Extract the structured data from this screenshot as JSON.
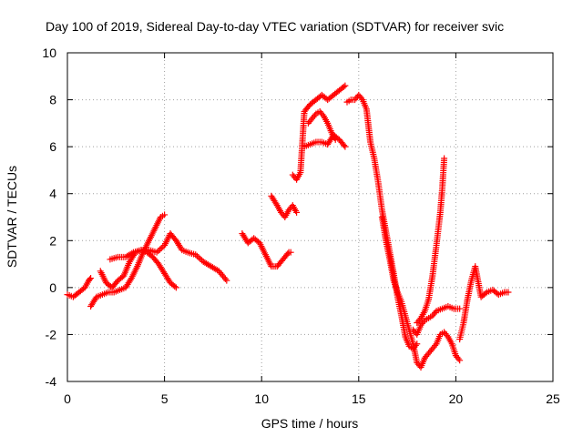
{
  "chart_data": {
    "type": "scatter",
    "title": "Day 100 of 2019, Sidereal Day-to-day VTEC variation (SDTVAR) for receiver svic",
    "xlabel": "GPS time / hours",
    "ylabel": "SDTVAR / TECUs",
    "xlim": [
      0,
      25
    ],
    "ylim": [
      -4,
      10
    ],
    "x_ticks": [
      "0",
      "5",
      "10",
      "15",
      "20",
      "25"
    ],
    "y_ticks": [
      "-4",
      "-2",
      "0",
      "2",
      "4",
      "6",
      "8",
      "10"
    ],
    "grid": true,
    "marker": "plus",
    "color": "#ff0000",
    "series": [
      {
        "segments": [
          {
            "x": [
              0.0,
              0.3,
              0.6,
              0.9,
              1.1,
              1.2
            ],
            "y": [
              -0.3,
              -0.4,
              -0.2,
              0.0,
              0.3,
              0.4
            ]
          },
          {
            "x": [
              1.2,
              1.5,
              1.8,
              2.1,
              2.4,
              2.7,
              3.0,
              3.3,
              3.6,
              3.9,
              4.2,
              4.5,
              4.8,
              5.0
            ],
            "y": [
              -0.8,
              -0.4,
              -0.3,
              -0.2,
              -0.2,
              -0.1,
              0.0,
              0.4,
              0.9,
              1.5,
              2.0,
              2.5,
              3.0,
              3.1
            ]
          },
          {
            "x": [
              1.7,
              2.0,
              2.3,
              2.6,
              2.9,
              3.2,
              3.5,
              3.8,
              4.1,
              4.4,
              4.7,
              5.0,
              5.3,
              5.6
            ],
            "y": [
              0.7,
              0.2,
              0.0,
              0.3,
              0.5,
              1.1,
              1.5,
              1.6,
              1.5,
              1.3,
              1.0,
              0.6,
              0.2,
              0.0
            ]
          },
          {
            "x": [
              2.2,
              2.6,
              3.0,
              3.4,
              3.8,
              4.2,
              4.6,
              5.0,
              5.3,
              5.6,
              5.9,
              6.2,
              6.6,
              7.0,
              7.4,
              7.8,
              8.2
            ],
            "y": [
              1.2,
              1.3,
              1.3,
              1.5,
              1.6,
              1.6,
              1.5,
              1.8,
              2.3,
              2.0,
              1.6,
              1.5,
              1.4,
              1.1,
              0.9,
              0.7,
              0.3
            ]
          },
          {
            "x": [
              9.0,
              9.3,
              9.6,
              9.9,
              10.2,
              10.5,
              10.8,
              11.1,
              11.4,
              11.5
            ],
            "y": [
              2.3,
              1.9,
              2.1,
              1.9,
              1.4,
              0.9,
              0.9,
              1.2,
              1.5,
              1.5
            ]
          },
          {
            "x": [
              10.5,
              10.8,
              11.0,
              11.2,
              11.4,
              11.6,
              11.8
            ],
            "y": [
              3.9,
              3.5,
              3.2,
              3.0,
              3.3,
              3.5,
              3.2
            ]
          },
          {
            "x": [
              11.6,
              11.8,
              12.0,
              12.2,
              12.5,
              12.8,
              13.1,
              13.4,
              13.7,
              14.0,
              14.3
            ],
            "y": [
              4.8,
              4.6,
              4.9,
              7.5,
              7.8,
              8.0,
              8.2,
              8.0,
              8.2,
              8.4,
              8.6
            ]
          },
          {
            "x": [
              12.2,
              12.5,
              12.8,
              13.1,
              13.4,
              13.7,
              14.0,
              14.3
            ],
            "y": [
              6.0,
              6.1,
              6.2,
              6.2,
              6.1,
              6.5,
              6.3,
              6.0
            ]
          },
          {
            "x": [
              12.4,
              12.6,
              12.8,
              13.0,
              13.2,
              13.4,
              13.6,
              13.8
            ],
            "y": [
              7.0,
              7.2,
              7.4,
              7.5,
              7.3,
              7.0,
              6.6,
              6.3
            ]
          },
          {
            "x": [
              14.4,
              14.6,
              14.8,
              15.0,
              15.2,
              15.4,
              15.6,
              15.8,
              16.0,
              16.2,
              16.4,
              16.6,
              16.8,
              17.0,
              17.2,
              17.4,
              17.6,
              17.8,
              18.0
            ],
            "y": [
              7.9,
              8.0,
              8.0,
              8.2,
              8.0,
              7.6,
              6.2,
              5.5,
              4.5,
              3.3,
              2.4,
              1.5,
              0.6,
              -0.4,
              -1.2,
              -2.1,
              -2.5,
              -2.6,
              -2.4
            ]
          },
          {
            "x": [
              16.2,
              16.4,
              16.6,
              16.8,
              17.0,
              17.2,
              17.4,
              17.6,
              17.8,
              18.0,
              18.2,
              18.4,
              18.6,
              18.8,
              19.0,
              19.2,
              19.4,
              19.6,
              19.8,
              20.0,
              20.2
            ],
            "y": [
              3.0,
              2.0,
              1.2,
              0.3,
              -0.2,
              -0.6,
              -1.2,
              -1.8,
              -2.4,
              -3.2,
              -3.4,
              -3.0,
              -2.8,
              -2.6,
              -2.4,
              -2.0,
              -1.9,
              -2.1,
              -2.4,
              -2.9,
              -3.1
            ]
          },
          {
            "x": [
              17.8,
              18.0,
              18.2,
              18.4,
              18.6,
              18.8,
              19.0,
              19.3,
              19.6,
              19.9,
              20.2
            ],
            "y": [
              -1.8,
              -2.0,
              -1.6,
              -1.4,
              -1.3,
              -1.2,
              -1.0,
              -0.9,
              -0.8,
              -0.9,
              -0.9
            ]
          },
          {
            "x": [
              18.0,
              18.2,
              18.4,
              18.6,
              18.8,
              19.0,
              19.2,
              19.3,
              19.4
            ],
            "y": [
              -1.5,
              -1.3,
              -1.0,
              -0.5,
              0.5,
              1.8,
              3.2,
              4.2,
              5.5
            ]
          },
          {
            "x": [
              20.2,
              20.4,
              20.6,
              20.8,
              21.0,
              21.3,
              21.6,
              21.9,
              22.2,
              22.5,
              22.7
            ],
            "y": [
              -2.2,
              -1.5,
              -0.5,
              0.3,
              0.9,
              -0.4,
              -0.2,
              -0.1,
              -0.3,
              -0.2,
              -0.2
            ]
          }
        ]
      }
    ]
  }
}
